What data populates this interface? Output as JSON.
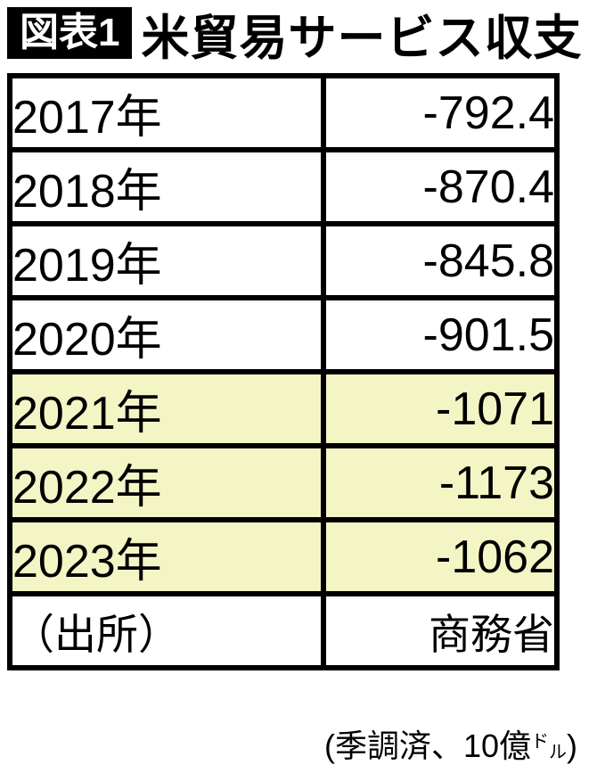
{
  "header": {
    "badge": "図表1",
    "title": "米貿易サービス収支"
  },
  "table": {
    "rows": [
      {
        "label": "2017年",
        "value": "-792.4",
        "highlight": false
      },
      {
        "label": "2018年",
        "value": "-870.4",
        "highlight": false
      },
      {
        "label": "2019年",
        "value": "-845.8",
        "highlight": false
      },
      {
        "label": "2020年",
        "value": "-901.5",
        "highlight": false
      },
      {
        "label": "2021年",
        "value": "-1071",
        "highlight": true
      },
      {
        "label": "2022年",
        "value": "-1173",
        "highlight": true
      },
      {
        "label": "2023年",
        "value": "-1062",
        "highlight": true
      },
      {
        "label": "（出所）",
        "value": "商務省",
        "highlight": false
      }
    ]
  },
  "footer": {
    "prefix": "(季調済、10億",
    "unit_top": "ド",
    "unit_bottom": "ル",
    "suffix": ")"
  },
  "colors": {
    "ink": "#000000",
    "highlight": "#f4f5c5",
    "badge_bg": "#000000",
    "badge_text": "#ffffff",
    "cell_bg": "#ffffff"
  },
  "chart_data": {
    "type": "table",
    "figure_label": "図表1",
    "title": "米貿易サービス収支",
    "unit_note": "(季調済、10億ドル)",
    "categories": [
      "2017年",
      "2018年",
      "2019年",
      "2020年",
      "2021年",
      "2022年",
      "2023年"
    ],
    "values": [
      -792.4,
      -870.4,
      -845.8,
      -901.5,
      -1071,
      -1173,
      -1062
    ],
    "highlighted_categories": [
      "2021年",
      "2022年",
      "2023年"
    ],
    "source_label": "（出所）",
    "source": "商務省"
  }
}
